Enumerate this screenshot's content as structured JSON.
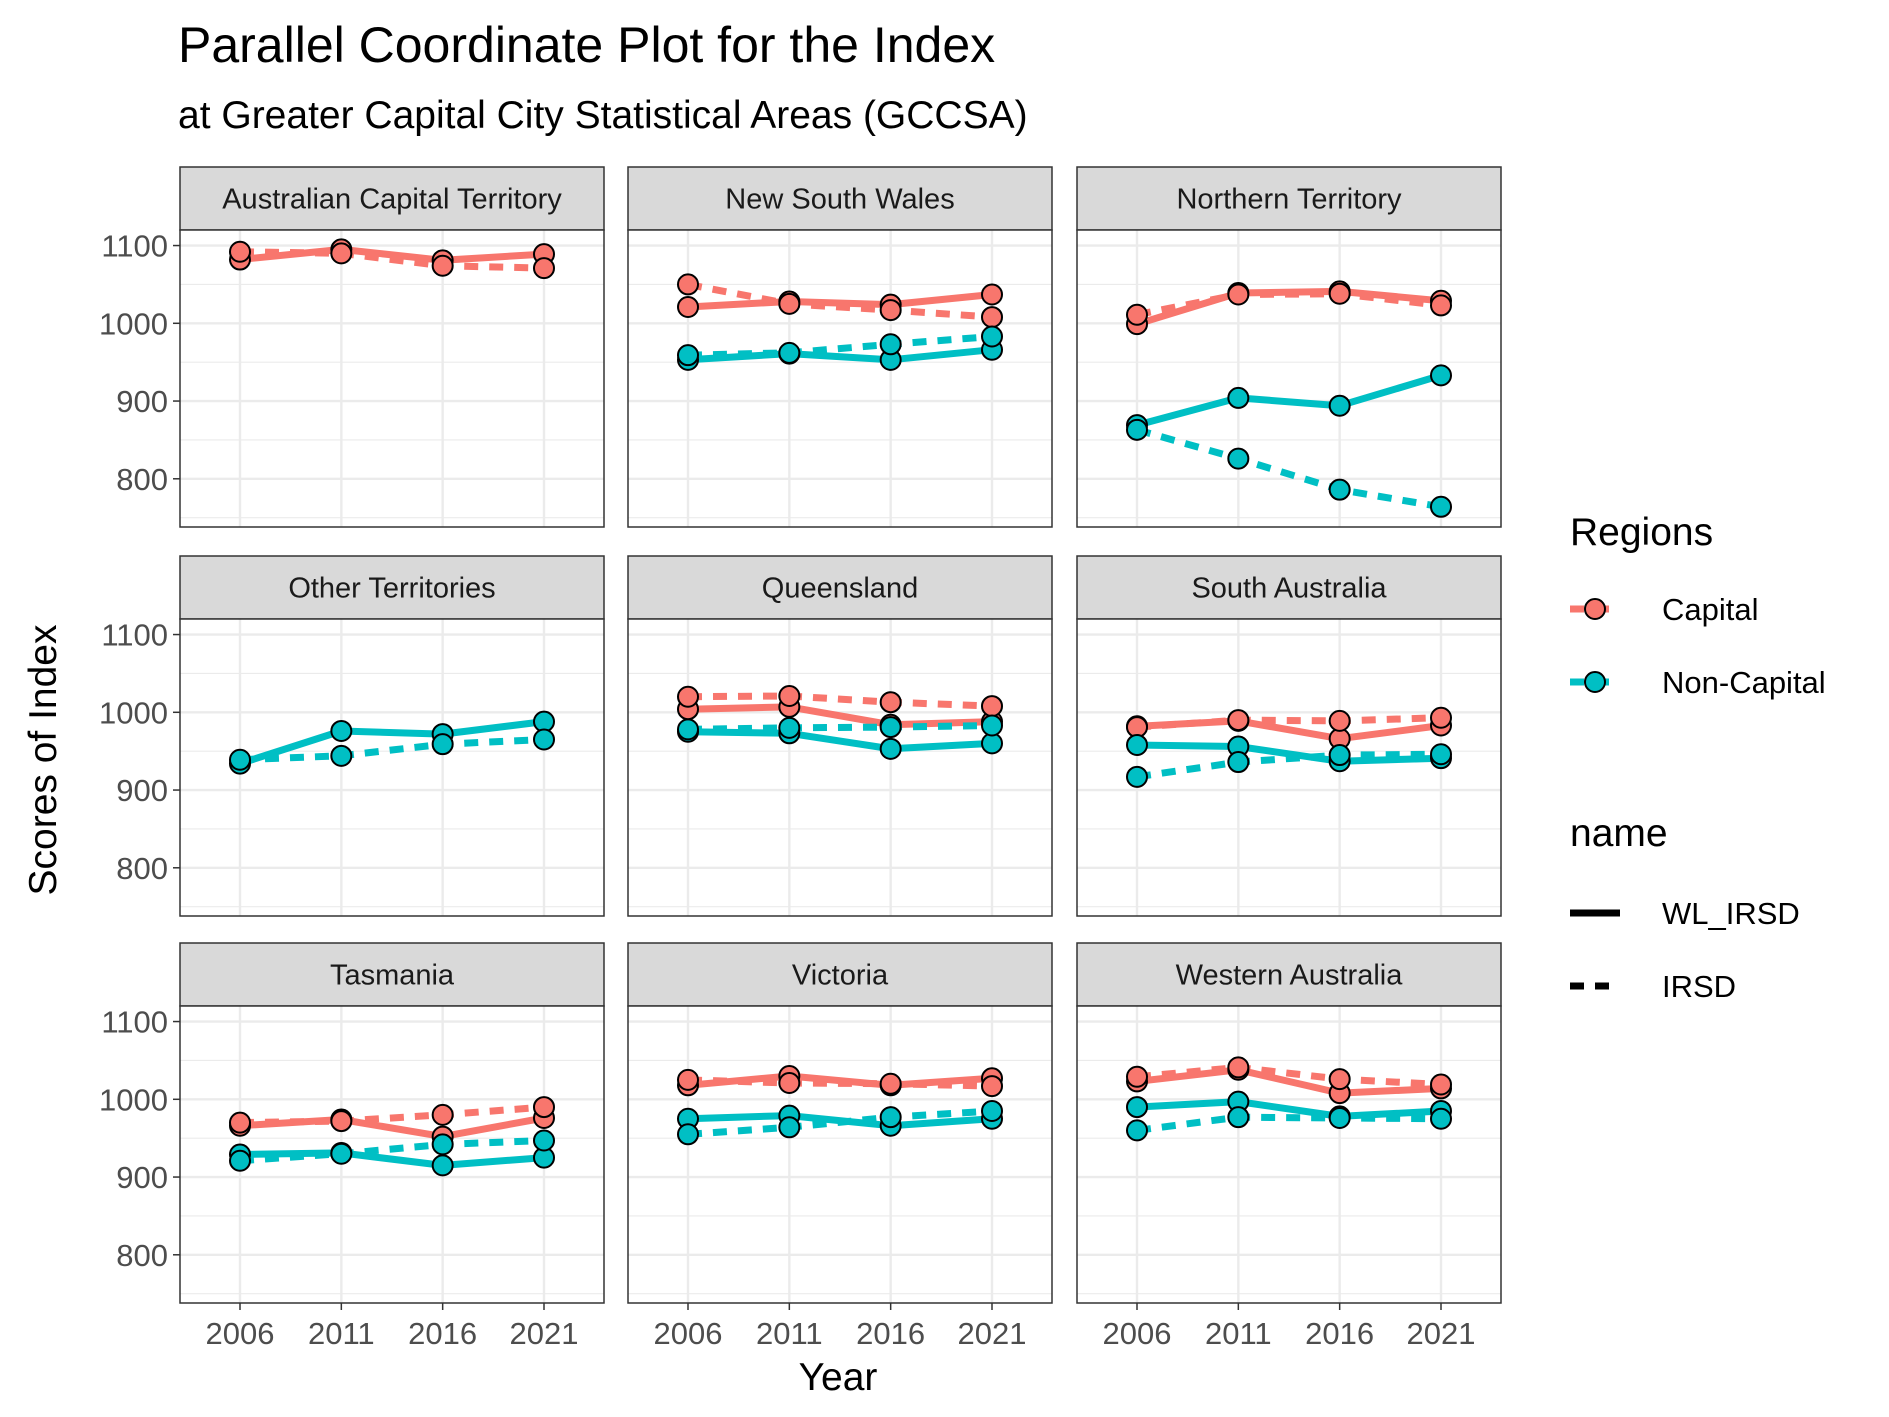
{
  "chart_data": {
    "type": "line",
    "title": "Parallel Coordinate Plot for the Index",
    "subtitle": "at Greater Capital City Statistical Areas (GCCSA)",
    "xlabel": "Year",
    "ylabel": "Scores of Index",
    "x": [
      "2006",
      "2011",
      "2016",
      "2021"
    ],
    "y_ticks": [
      800,
      900,
      1000,
      1100
    ],
    "ylim": [
      738,
      1120
    ],
    "grid": true,
    "colors": {
      "Capital": "#F8766D",
      "Non-Capital": "#00BFC4"
    },
    "legend": {
      "position": "right",
      "color_title": "Regions",
      "color_items": [
        "Capital",
        "Non-Capital"
      ],
      "linetype_title": "name",
      "linetype_items": [
        {
          "label": "WL_IRSD",
          "dash": "solid"
        },
        {
          "label": "IRSD",
          "dash": "dashed"
        }
      ]
    },
    "panels": [
      {
        "name": "Australian Capital Territory",
        "series": [
          {
            "region": "Capital",
            "measure": "WL_IRSD",
            "values": [
              1082,
              1095,
              1081,
              1089
            ]
          },
          {
            "region": "Capital",
            "measure": "IRSD",
            "values": [
              1092,
              1090,
              1074,
              1071
            ]
          }
        ]
      },
      {
        "name": "New South Wales",
        "series": [
          {
            "region": "Capital",
            "measure": "WL_IRSD",
            "values": [
              1021,
              1028,
              1024,
              1037
            ]
          },
          {
            "region": "Capital",
            "measure": "IRSD",
            "values": [
              1050,
              1025,
              1017,
              1008
            ]
          },
          {
            "region": "Non-Capital",
            "measure": "WL_IRSD",
            "values": [
              953,
              961,
              953,
              966
            ]
          },
          {
            "region": "Non-Capital",
            "measure": "IRSD",
            "values": [
              959,
              962,
              973,
              983
            ]
          }
        ]
      },
      {
        "name": "Northern Territory",
        "series": [
          {
            "region": "Capital",
            "measure": "WL_IRSD",
            "values": [
              999,
              1039,
              1041,
              1029
            ]
          },
          {
            "region": "Capital",
            "measure": "IRSD",
            "values": [
              1011,
              1037,
              1038,
              1023
            ]
          },
          {
            "region": "Non-Capital",
            "measure": "WL_IRSD",
            "values": [
              869,
              904,
              894,
              933
            ]
          },
          {
            "region": "Non-Capital",
            "measure": "IRSD",
            "values": [
              863,
              826,
              786,
              764
            ]
          }
        ]
      },
      {
        "name": "Other Territories",
        "series": [
          {
            "region": "Non-Capital",
            "measure": "WL_IRSD",
            "values": [
              934,
              976,
              972,
              988
            ]
          },
          {
            "region": "Non-Capital",
            "measure": "IRSD",
            "values": [
              939,
              944,
              959,
              965
            ]
          }
        ]
      },
      {
        "name": "Queensland",
        "series": [
          {
            "region": "Capital",
            "measure": "WL_IRSD",
            "values": [
              1004,
              1007,
              984,
              988
            ]
          },
          {
            "region": "Capital",
            "measure": "IRSD",
            "values": [
              1020,
              1021,
              1013,
              1008
            ]
          },
          {
            "region": "Non-Capital",
            "measure": "WL_IRSD",
            "values": [
              975,
              973,
              953,
              960
            ]
          },
          {
            "region": "Non-Capital",
            "measure": "IRSD",
            "values": [
              978,
              980,
              981,
              983
            ]
          }
        ]
      },
      {
        "name": "South Australia",
        "series": [
          {
            "region": "Capital",
            "measure": "WL_IRSD",
            "values": [
              982,
              989,
              966,
              983
            ]
          },
          {
            "region": "Capital",
            "measure": "IRSD",
            "values": [
              981,
              990,
              989,
              993
            ]
          },
          {
            "region": "Non-Capital",
            "measure": "WL_IRSD",
            "values": [
              958,
              956,
              937,
              941
            ]
          },
          {
            "region": "Non-Capital",
            "measure": "IRSD",
            "values": [
              917,
              936,
              945,
              946
            ]
          }
        ]
      },
      {
        "name": "Tasmania",
        "series": [
          {
            "region": "Capital",
            "measure": "WL_IRSD",
            "values": [
              966,
              974,
              952,
              976
            ]
          },
          {
            "region": "Capital",
            "measure": "IRSD",
            "values": [
              970,
              972,
              980,
              990
            ]
          },
          {
            "region": "Non-Capital",
            "measure": "WL_IRSD",
            "values": [
              929,
              931,
              915,
              925
            ]
          },
          {
            "region": "Non-Capital",
            "measure": "IRSD",
            "values": [
              921,
              930,
              942,
              947
            ]
          }
        ]
      },
      {
        "name": "Victoria",
        "series": [
          {
            "region": "Capital",
            "measure": "WL_IRSD",
            "values": [
              1018,
              1030,
              1018,
              1027
            ]
          },
          {
            "region": "Capital",
            "measure": "IRSD",
            "values": [
              1025,
              1021,
              1020,
              1017
            ]
          },
          {
            "region": "Non-Capital",
            "measure": "WL_IRSD",
            "values": [
              975,
              979,
              966,
              975
            ]
          },
          {
            "region": "Non-Capital",
            "measure": "IRSD",
            "values": [
              955,
              964,
              977,
              985
            ]
          }
        ]
      },
      {
        "name": "Western Australia",
        "series": [
          {
            "region": "Capital",
            "measure": "WL_IRSD",
            "values": [
              1023,
              1038,
              1008,
              1014
            ]
          },
          {
            "region": "Capital",
            "measure": "IRSD",
            "values": [
              1029,
              1041,
              1026,
              1019
            ]
          },
          {
            "region": "Non-Capital",
            "measure": "WL_IRSD",
            "values": [
              990,
              997,
              978,
              985
            ]
          },
          {
            "region": "Non-Capital",
            "measure": "IRSD",
            "values": [
              960,
              977,
              976,
              975
            ]
          }
        ]
      }
    ]
  }
}
